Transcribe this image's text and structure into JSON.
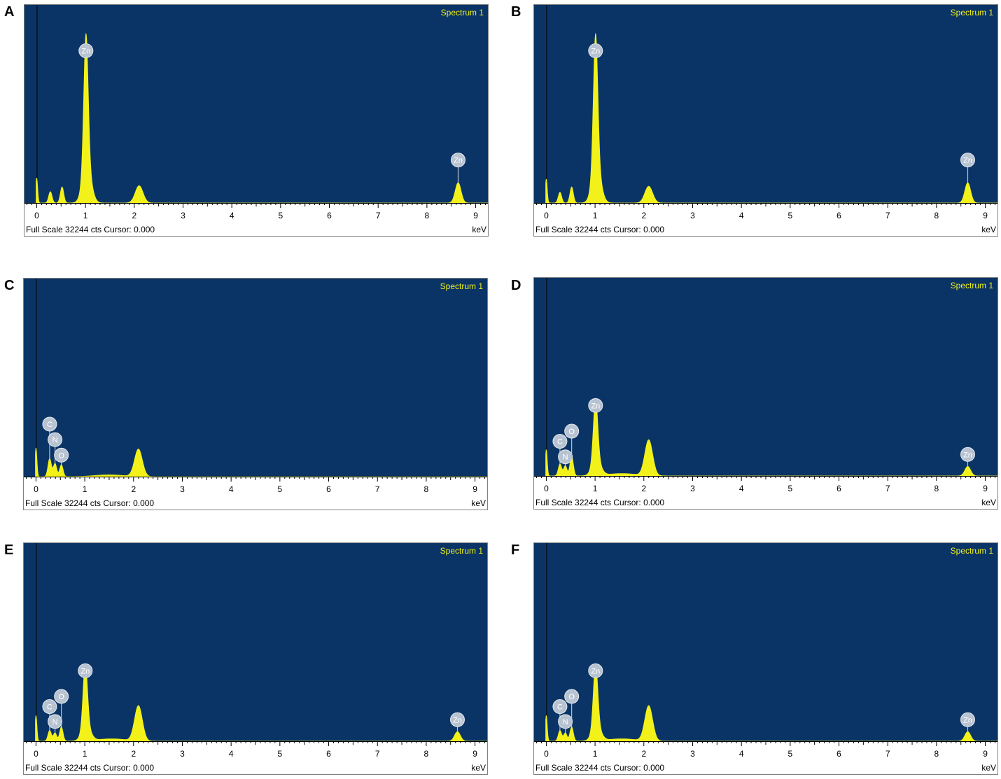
{
  "colors": {
    "background": "#0a3465",
    "spectrum": "#f2f21a",
    "title_text": "#f2f21a",
    "badge_fill": "#b8c3d2",
    "badge_text": "#ffffff"
  },
  "panels": [
    {
      "letter": "A",
      "title": "Spectrum 1",
      "footer": "Full Scale 32244 cts Cursor: 0.000",
      "unit": "keV"
    },
    {
      "letter": "B",
      "title": "Spectrum 1",
      "footer": "Full Scale 32244 cts Cursor: 0.000",
      "unit": "keV"
    },
    {
      "letter": "C",
      "title": "Spectrum 1",
      "footer": "Full Scale 32244 cts Cursor: 0.000",
      "unit": "keV"
    },
    {
      "letter": "D",
      "title": "Spectrum 1",
      "footer": "Full Scale 32244 cts Cursor: 0.000",
      "unit": "keV"
    },
    {
      "letter": "E",
      "title": "Spectrum 1",
      "footer": "Full Scale 32244 cts Cursor: 0.000",
      "unit": "keV"
    },
    {
      "letter": "F",
      "title": "Spectrum 1",
      "footer": "Full Scale 32244 cts Cursor: 0.000",
      "unit": "keV"
    }
  ],
  "chart_data": [
    {
      "type": "area",
      "panel": "A",
      "title": "Spectrum 1",
      "xlabel": "keV",
      "xlim": [
        -0.25,
        9.25
      ],
      "ylim": [
        0,
        32244
      ],
      "x_ticks": [
        "0",
        "1",
        "2",
        "3",
        "4",
        "5",
        "6",
        "7",
        "8",
        "9"
      ],
      "peaks": [
        {
          "keV": 0.0,
          "cts": 4200,
          "width": 0.02
        },
        {
          "keV": 0.28,
          "cts": 1900,
          "width": 0.035
        },
        {
          "keV": 0.52,
          "cts": 2700,
          "width": 0.035
        },
        {
          "keV": 1.01,
          "cts": 22500,
          "width": 0.045
        },
        {
          "keV": 1.03,
          "cts": 6000,
          "width": 0.09
        },
        {
          "keV": 2.1,
          "cts": 2900,
          "width": 0.08
        },
        {
          "keV": 8.64,
          "cts": 3400,
          "width": 0.06
        }
      ],
      "labels": [
        {
          "text": "Zn",
          "keV": 1.01,
          "cts": 25500
        },
        {
          "text": "Zn",
          "keV": 8.64,
          "cts": 7200
        }
      ]
    },
    {
      "type": "area",
      "panel": "B",
      "title": "Spectrum 1",
      "xlabel": "keV",
      "xlim": [
        -0.25,
        9.25
      ],
      "ylim": [
        0,
        32244
      ],
      "x_ticks": [
        "0",
        "1",
        "2",
        "3",
        "4",
        "5",
        "6",
        "7",
        "8",
        "9"
      ],
      "peaks": [
        {
          "keV": 0.0,
          "cts": 4000,
          "width": 0.02
        },
        {
          "keV": 0.28,
          "cts": 1800,
          "width": 0.035
        },
        {
          "keV": 0.52,
          "cts": 2700,
          "width": 0.035
        },
        {
          "keV": 1.01,
          "cts": 22500,
          "width": 0.045
        },
        {
          "keV": 1.03,
          "cts": 6000,
          "width": 0.09
        },
        {
          "keV": 2.1,
          "cts": 2800,
          "width": 0.08
        },
        {
          "keV": 8.64,
          "cts": 3400,
          "width": 0.06
        }
      ],
      "labels": [
        {
          "text": "Zn",
          "keV": 1.01,
          "cts": 25500
        },
        {
          "text": "Zn",
          "keV": 8.64,
          "cts": 7200
        }
      ]
    },
    {
      "type": "area",
      "panel": "C",
      "title": "Spectrum 1",
      "xlabel": "keV",
      "xlim": [
        -0.25,
        9.25
      ],
      "ylim": [
        0,
        32244
      ],
      "x_ticks": [
        "0",
        "1",
        "2",
        "3",
        "4",
        "5",
        "6",
        "7",
        "8",
        "9"
      ],
      "peaks": [
        {
          "keV": 0.0,
          "cts": 4800,
          "width": 0.02
        },
        {
          "keV": 0.28,
          "cts": 3000,
          "width": 0.035
        },
        {
          "keV": 0.39,
          "cts": 2200,
          "width": 0.035
        },
        {
          "keV": 0.52,
          "cts": 2000,
          "width": 0.035
        },
        {
          "keV": 1.5,
          "cts": 300,
          "width": 0.3
        },
        {
          "keV": 2.1,
          "cts": 4600,
          "width": 0.08
        }
      ],
      "labels": [
        {
          "text": "C",
          "keV": 0.28,
          "cts": 8800
        },
        {
          "text": "N",
          "keV": 0.39,
          "cts": 6200
        },
        {
          "text": "O",
          "keV": 0.52,
          "cts": 3600
        }
      ]
    },
    {
      "type": "area",
      "panel": "D",
      "title": "Spectrum 1",
      "xlabel": "keV",
      "xlim": [
        -0.25,
        9.25
      ],
      "ylim": [
        0,
        32244
      ],
      "x_ticks": [
        "0",
        "1",
        "2",
        "3",
        "4",
        "5",
        "6",
        "7",
        "8",
        "9"
      ],
      "peaks": [
        {
          "keV": 0.0,
          "cts": 4400,
          "width": 0.02
        },
        {
          "keV": 0.28,
          "cts": 2000,
          "width": 0.035
        },
        {
          "keV": 0.39,
          "cts": 1700,
          "width": 0.035
        },
        {
          "keV": 0.52,
          "cts": 3300,
          "width": 0.035
        },
        {
          "keV": 1.01,
          "cts": 10500,
          "width": 0.045
        },
        {
          "keV": 1.03,
          "cts": 2500,
          "width": 0.09
        },
        {
          "keV": 1.55,
          "cts": 400,
          "width": 0.3
        },
        {
          "keV": 2.1,
          "cts": 6000,
          "width": 0.08
        },
        {
          "keV": 8.64,
          "cts": 1600,
          "width": 0.06
        }
      ],
      "labels": [
        {
          "text": "C",
          "keV": 0.28,
          "cts": 5800
        },
        {
          "text": "N",
          "keV": 0.39,
          "cts": 3200
        },
        {
          "text": "O",
          "keV": 0.52,
          "cts": 7500
        },
        {
          "text": "Zn",
          "keV": 1.01,
          "cts": 11800
        },
        {
          "text": "Zn",
          "keV": 8.64,
          "cts": 3600
        }
      ]
    },
    {
      "type": "area",
      "panel": "E",
      "title": "Spectrum 1",
      "xlabel": "keV",
      "xlim": [
        -0.25,
        9.25
      ],
      "ylim": [
        0,
        32244
      ],
      "x_ticks": [
        "0",
        "1",
        "2",
        "3",
        "4",
        "5",
        "6",
        "7",
        "8",
        "9"
      ],
      "peaks": [
        {
          "keV": 0.0,
          "cts": 4300,
          "width": 0.02
        },
        {
          "keV": 0.28,
          "cts": 1800,
          "width": 0.035
        },
        {
          "keV": 0.39,
          "cts": 1400,
          "width": 0.035
        },
        {
          "keV": 0.52,
          "cts": 2400,
          "width": 0.035
        },
        {
          "keV": 1.01,
          "cts": 10500,
          "width": 0.045
        },
        {
          "keV": 1.03,
          "cts": 2500,
          "width": 0.09
        },
        {
          "keV": 1.55,
          "cts": 400,
          "width": 0.3
        },
        {
          "keV": 2.1,
          "cts": 5900,
          "width": 0.08
        },
        {
          "keV": 8.64,
          "cts": 1600,
          "width": 0.06
        }
      ],
      "labels": [
        {
          "text": "C",
          "keV": 0.28,
          "cts": 5800
        },
        {
          "text": "N",
          "keV": 0.39,
          "cts": 3300
        },
        {
          "text": "O",
          "keV": 0.52,
          "cts": 7500
        },
        {
          "text": "Zn",
          "keV": 1.01,
          "cts": 11800
        },
        {
          "text": "Zn",
          "keV": 8.64,
          "cts": 3600
        }
      ]
    },
    {
      "type": "area",
      "panel": "F",
      "title": "Spectrum 1",
      "xlabel": "keV",
      "xlim": [
        -0.25,
        9.25
      ],
      "ylim": [
        0,
        32244
      ],
      "x_ticks": [
        "0",
        "1",
        "2",
        "3",
        "4",
        "5",
        "6",
        "7",
        "8",
        "9"
      ],
      "peaks": [
        {
          "keV": 0.0,
          "cts": 4300,
          "width": 0.02
        },
        {
          "keV": 0.28,
          "cts": 1800,
          "width": 0.035
        },
        {
          "keV": 0.39,
          "cts": 1400,
          "width": 0.035
        },
        {
          "keV": 0.52,
          "cts": 2400,
          "width": 0.035
        },
        {
          "keV": 1.01,
          "cts": 10500,
          "width": 0.045
        },
        {
          "keV": 1.03,
          "cts": 2500,
          "width": 0.09
        },
        {
          "keV": 1.55,
          "cts": 400,
          "width": 0.3
        },
        {
          "keV": 2.1,
          "cts": 5900,
          "width": 0.08
        },
        {
          "keV": 8.64,
          "cts": 1600,
          "width": 0.06
        }
      ],
      "labels": [
        {
          "text": "C",
          "keV": 0.28,
          "cts": 5800
        },
        {
          "text": "N",
          "keV": 0.39,
          "cts": 3300
        },
        {
          "text": "O",
          "keV": 0.52,
          "cts": 7500
        },
        {
          "text": "Zn",
          "keV": 1.01,
          "cts": 11800
        },
        {
          "text": "Zn",
          "keV": 8.64,
          "cts": 3600
        }
      ]
    }
  ]
}
